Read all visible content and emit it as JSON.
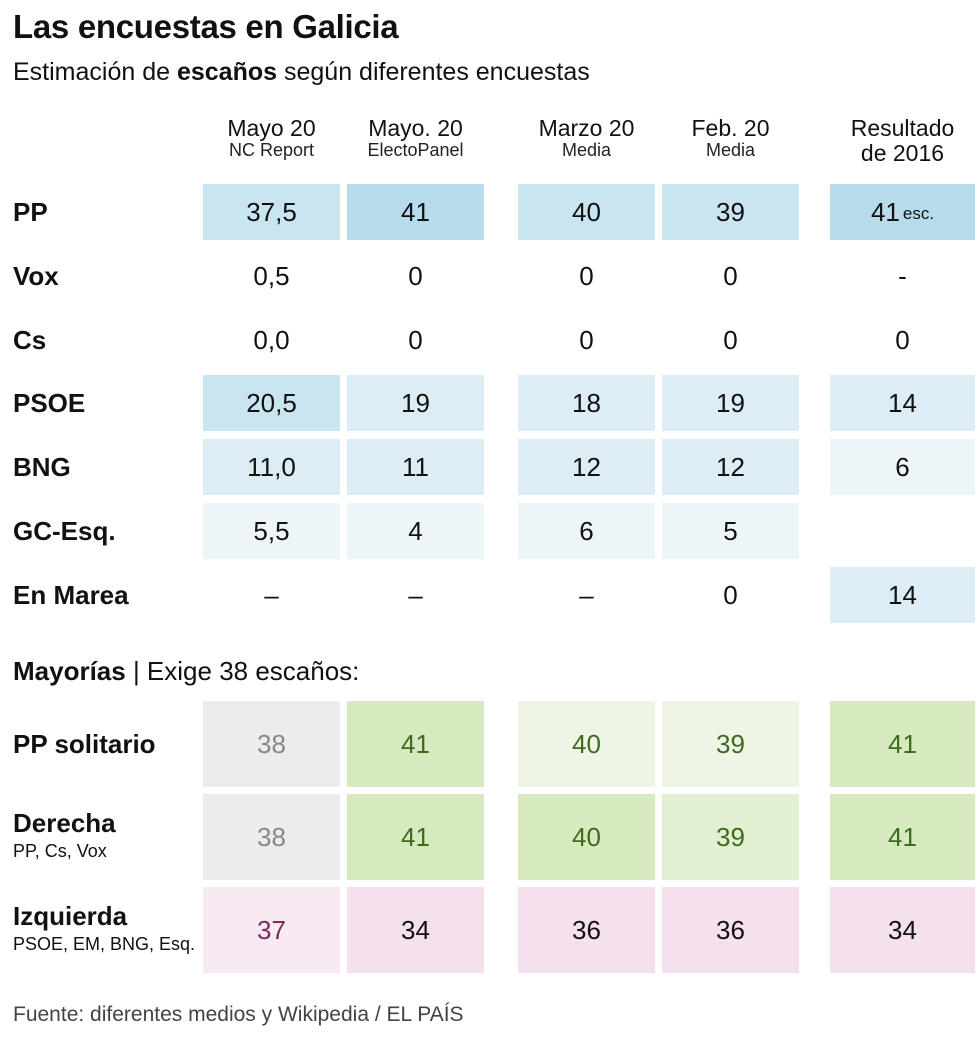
{
  "title": "Las encuestas en Galicia",
  "subtitle_prefix": "Estimación de ",
  "subtitle_bold": "escaños",
  "subtitle_suffix": " según diferentes encuestas",
  "columns": [
    {
      "line1": "Mayo 20",
      "line2": "NC Report"
    },
    {
      "line1": "Mayo. 20",
      "line2": "ElectoPanel"
    },
    {
      "line1": "Marzo 20",
      "line2": "Media"
    },
    {
      "line1": "Feb. 20",
      "line2": "Media"
    },
    {
      "line1": "Resultado",
      "line2": "de 2016"
    }
  ],
  "colors": {
    "blue_strong": "#b6dbea",
    "blue_mid": "#c9e5f0",
    "blue_light": "#dcedf5",
    "blue_faint": "#edf5f9",
    "grey": "#ececec",
    "green_strong": "#d7eabf",
    "green_mid": "#e2efd2",
    "green_light": "#eef5e5",
    "pink": "#f5e1ee",
    "pink_light": "#f8eaf3",
    "green_text": "#3f6b1f",
    "grey_text": "#888888",
    "purple_text": "#7d2a5e"
  },
  "parties": [
    {
      "name": "PP",
      "values": [
        "37,5",
        "41",
        "40",
        "39",
        "41"
      ],
      "unit": "esc.",
      "shades": [
        "blue_mid",
        "blue_strong",
        "blue_mid",
        "blue_mid",
        "blue_strong"
      ]
    },
    {
      "name": "Vox",
      "values": [
        "0,5",
        "0",
        "0",
        "0",
        "-"
      ],
      "shades": [
        "",
        "",
        "",
        "",
        ""
      ]
    },
    {
      "name": "Cs",
      "values": [
        "0,0",
        "0",
        "0",
        "0",
        "0"
      ],
      "shades": [
        "",
        "",
        "",
        "",
        ""
      ]
    },
    {
      "name": "PSOE",
      "values": [
        "20,5",
        "19",
        "18",
        "19",
        "14"
      ],
      "shades": [
        "blue_mid",
        "blue_light",
        "blue_light",
        "blue_light",
        "blue_light"
      ]
    },
    {
      "name": "BNG",
      "values": [
        "11,0",
        "11",
        "12",
        "12",
        "6"
      ],
      "shades": [
        "blue_light",
        "blue_light",
        "blue_light",
        "blue_light",
        "blue_faint"
      ]
    },
    {
      "name": "GC-Esq.",
      "values": [
        "5,5",
        "4",
        "6",
        "5",
        ""
      ],
      "shades": [
        "blue_faint",
        "blue_faint",
        "blue_faint",
        "blue_faint",
        ""
      ]
    },
    {
      "name": "En Marea",
      "values": [
        "–",
        "–",
        "–",
        "0",
        "14"
      ],
      "shades": [
        "",
        "",
        "",
        "",
        "blue_light"
      ]
    }
  ],
  "majorities_label_bold": "Mayorías",
  "majorities_label_rest": " | Exige 38 escaños:",
  "majorities": [
    {
      "name": "PP solitario",
      "sub": "",
      "values": [
        "38",
        "41",
        "40",
        "39",
        "41"
      ],
      "shades": [
        "grey",
        "green_strong",
        "green_light",
        "green_light",
        "green_strong"
      ],
      "text": [
        "grey_text",
        "green_text",
        "green_text",
        "green_text",
        "green_text"
      ]
    },
    {
      "name": "Derecha",
      "sub": "PP, Cs, Vox",
      "values": [
        "38",
        "41",
        "40",
        "39",
        "41"
      ],
      "shades": [
        "grey",
        "green_strong",
        "green_strong",
        "green_mid",
        "green_strong"
      ],
      "text": [
        "grey_text",
        "green_text",
        "green_text",
        "green_text",
        "green_text"
      ]
    },
    {
      "name": "Izquierda",
      "sub": "PSOE, EM, BNG, Esq.",
      "values": [
        "37",
        "34",
        "36",
        "36",
        "34"
      ],
      "shades": [
        "pink_light",
        "pink",
        "pink",
        "pink",
        "pink"
      ],
      "text": [
        "purple_text",
        "",
        "",
        "",
        ""
      ]
    }
  ],
  "source": "Fuente: diferentes medios y Wikipedia / EL PAÍS",
  "chart_data": {
    "type": "table",
    "title": "Las encuestas en Galicia",
    "subtitle": "Estimación de escaños según diferentes encuestas",
    "columns": [
      "Mayo 20 NC Report",
      "Mayo. 20 ElectoPanel",
      "Marzo 20 Media",
      "Feb. 20 Media",
      "Resultado de 2016"
    ],
    "rows": [
      {
        "label": "PP",
        "values": [
          37.5,
          41,
          40,
          39,
          41
        ]
      },
      {
        "label": "Vox",
        "values": [
          0.5,
          0,
          0,
          0,
          null
        ]
      },
      {
        "label": "Cs",
        "values": [
          0.0,
          0,
          0,
          0,
          0
        ]
      },
      {
        "label": "PSOE",
        "values": [
          20.5,
          19,
          18,
          19,
          14
        ]
      },
      {
        "label": "BNG",
        "values": [
          11.0,
          11,
          12,
          12,
          6
        ]
      },
      {
        "label": "GC-Esq.",
        "values": [
          5.5,
          4,
          6,
          5,
          null
        ]
      },
      {
        "label": "En Marea",
        "values": [
          null,
          null,
          null,
          0,
          14
        ]
      },
      {
        "label": "PP solitario",
        "values": [
          38,
          41,
          40,
          39,
          41
        ]
      },
      {
        "label": "Derecha",
        "values": [
          38,
          41,
          40,
          39,
          41
        ]
      },
      {
        "label": "Izquierda",
        "values": [
          37,
          34,
          36,
          36,
          34
        ]
      }
    ],
    "threshold": 38
  }
}
